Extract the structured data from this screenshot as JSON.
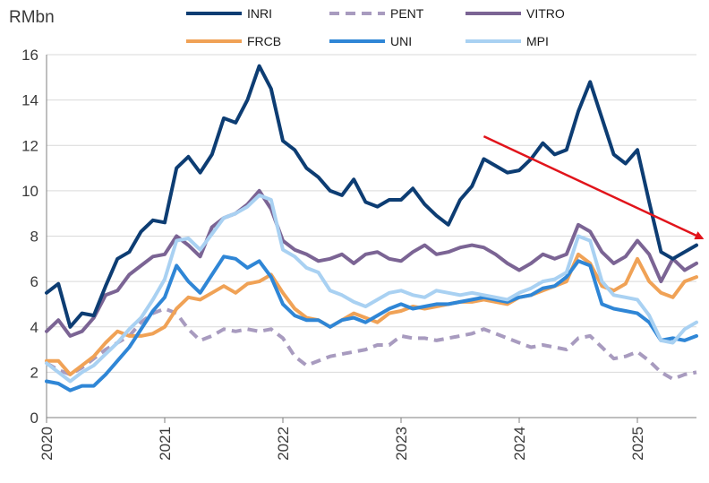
{
  "chart_data": {
    "type": "line",
    "unit_label": "RMbn",
    "ylim": [
      0,
      16
    ],
    "y_ticks": [
      0,
      2,
      4,
      6,
      8,
      10,
      12,
      14,
      16
    ],
    "y_tick_labels": [
      "0",
      "2",
      "4",
      "6",
      "8",
      "10",
      "12",
      "14",
      "16"
    ],
    "xlim": [
      2020.0,
      2025.5
    ],
    "x_ticks": [
      2020,
      2021,
      2022,
      2023,
      2024,
      2025
    ],
    "x_tick_labels": [
      "2020",
      "2021",
      "2022",
      "2023",
      "2024",
      "2025"
    ],
    "grid": {
      "horizontal": true,
      "vertical": false
    },
    "legend_position": "top",
    "x": [
      2020.0,
      2020.1,
      2020.2,
      2020.3,
      2020.4,
      2020.5,
      2020.6,
      2020.7,
      2020.8,
      2020.9,
      2021.0,
      2021.1,
      2021.2,
      2021.3,
      2021.4,
      2021.5,
      2021.6,
      2021.7,
      2021.8,
      2021.9,
      2022.0,
      2022.1,
      2022.2,
      2022.3,
      2022.4,
      2022.5,
      2022.6,
      2022.7,
      2022.8,
      2022.9,
      2023.0,
      2023.1,
      2023.2,
      2023.3,
      2023.4,
      2023.5,
      2023.6,
      2023.7,
      2023.8,
      2023.9,
      2024.0,
      2024.1,
      2024.2,
      2024.3,
      2024.4,
      2024.5,
      2024.6,
      2024.7,
      2024.8,
      2024.9,
      2025.0,
      2025.1,
      2025.2,
      2025.3,
      2025.4,
      2025.5
    ],
    "series": [
      {
        "name": "INRI",
        "color": "#0d3d73",
        "dash": "solid",
        "values": [
          5.5,
          5.9,
          4.0,
          4.6,
          4.5,
          5.8,
          7.0,
          7.3,
          8.2,
          8.7,
          8.6,
          11.0,
          11.5,
          10.8,
          11.6,
          13.2,
          13.0,
          14.0,
          15.5,
          14.5,
          12.2,
          11.8,
          11.0,
          10.6,
          10.0,
          9.8,
          10.5,
          9.5,
          9.3,
          9.6,
          9.6,
          10.1,
          9.4,
          8.9,
          8.5,
          9.6,
          10.2,
          11.4,
          11.1,
          10.8,
          10.9,
          11.4,
          12.1,
          11.6,
          11.8,
          13.5,
          14.8,
          13.2,
          11.6,
          11.2,
          11.8,
          9.5,
          7.3,
          7.0,
          7.3,
          7.6
        ]
      },
      {
        "name": "PENT",
        "color": "#a89bbf",
        "dash": "dashed",
        "values": [
          2.4,
          2.1,
          1.9,
          2.2,
          2.6,
          3.0,
          3.3,
          3.6,
          4.2,
          4.6,
          4.8,
          4.6,
          3.9,
          3.4,
          3.6,
          3.9,
          3.8,
          3.9,
          3.8,
          3.9,
          3.5,
          2.7,
          2.3,
          2.5,
          2.7,
          2.8,
          2.9,
          3.0,
          3.2,
          3.2,
          3.6,
          3.5,
          3.5,
          3.4,
          3.5,
          3.6,
          3.7,
          3.9,
          3.7,
          3.5,
          3.3,
          3.1,
          3.2,
          3.1,
          3.0,
          3.5,
          3.6,
          3.1,
          2.6,
          2.7,
          2.9,
          2.5,
          2.0,
          1.7,
          1.9,
          2.0
        ]
      },
      {
        "name": "VITRO",
        "color": "#7b6494",
        "dash": "solid",
        "values": [
          3.8,
          4.3,
          3.6,
          3.8,
          4.4,
          5.4,
          5.6,
          6.3,
          6.7,
          7.1,
          7.2,
          8.0,
          7.6,
          7.1,
          8.4,
          8.8,
          9.0,
          9.4,
          10.0,
          9.2,
          7.8,
          7.4,
          7.2,
          6.9,
          7.0,
          7.2,
          6.8,
          7.2,
          7.3,
          7.0,
          6.9,
          7.3,
          7.6,
          7.2,
          7.3,
          7.5,
          7.6,
          7.5,
          7.2,
          6.8,
          6.5,
          6.8,
          7.2,
          7.0,
          7.2,
          8.5,
          8.2,
          7.3,
          6.8,
          7.1,
          7.8,
          7.2,
          6.0,
          7.0,
          6.5,
          6.8
        ]
      },
      {
        "name": "FRCB",
        "color": "#f0a256",
        "dash": "solid",
        "values": [
          2.5,
          2.5,
          1.9,
          2.3,
          2.7,
          3.3,
          3.8,
          3.6,
          3.6,
          3.7,
          4.0,
          4.8,
          5.3,
          5.2,
          5.5,
          5.8,
          5.5,
          5.9,
          6.0,
          6.3,
          5.5,
          4.8,
          4.4,
          4.3,
          4.0,
          4.3,
          4.6,
          4.4,
          4.2,
          4.6,
          4.7,
          4.9,
          4.8,
          4.9,
          5.0,
          5.1,
          5.1,
          5.2,
          5.1,
          5.0,
          5.3,
          5.4,
          5.6,
          5.8,
          6.0,
          7.2,
          6.8,
          5.8,
          5.6,
          5.9,
          7.0,
          6.0,
          5.5,
          5.3,
          6.0,
          6.2
        ]
      },
      {
        "name": "UNI",
        "color": "#2f86d6",
        "dash": "solid",
        "values": [
          1.6,
          1.5,
          1.2,
          1.4,
          1.4,
          1.9,
          2.5,
          3.1,
          3.9,
          4.7,
          5.3,
          6.7,
          6.0,
          5.5,
          6.3,
          7.1,
          7.0,
          6.6,
          6.9,
          6.2,
          5.0,
          4.5,
          4.3,
          4.3,
          4.0,
          4.3,
          4.4,
          4.2,
          4.5,
          4.8,
          5.0,
          4.8,
          4.9,
          5.0,
          5.0,
          5.1,
          5.2,
          5.3,
          5.2,
          5.1,
          5.3,
          5.4,
          5.7,
          5.8,
          6.2,
          6.9,
          6.7,
          5.0,
          4.8,
          4.7,
          4.6,
          4.2,
          3.4,
          3.5,
          3.4,
          3.6
        ]
      },
      {
        "name": "MPI",
        "color": "#a9d1f2",
        "dash": "solid",
        "values": [
          2.4,
          2.0,
          1.6,
          2.0,
          2.3,
          2.8,
          3.3,
          3.9,
          4.4,
          5.2,
          6.1,
          7.8,
          7.9,
          7.4,
          8.1,
          8.8,
          9.0,
          9.3,
          9.8,
          9.6,
          7.4,
          7.1,
          6.6,
          6.4,
          5.6,
          5.4,
          5.1,
          4.9,
          5.2,
          5.5,
          5.6,
          5.4,
          5.3,
          5.6,
          5.5,
          5.4,
          5.5,
          5.4,
          5.3,
          5.2,
          5.5,
          5.7,
          6.0,
          6.1,
          6.4,
          8.0,
          7.8,
          6.0,
          5.4,
          5.3,
          5.2,
          4.5,
          3.4,
          3.3,
          3.9,
          4.2
        ]
      }
    ],
    "annotations": [
      {
        "type": "arrow",
        "color": "#e1141b",
        "from": [
          2023.7,
          12.4
        ],
        "to": [
          2025.55,
          7.9
        ]
      }
    ]
  }
}
